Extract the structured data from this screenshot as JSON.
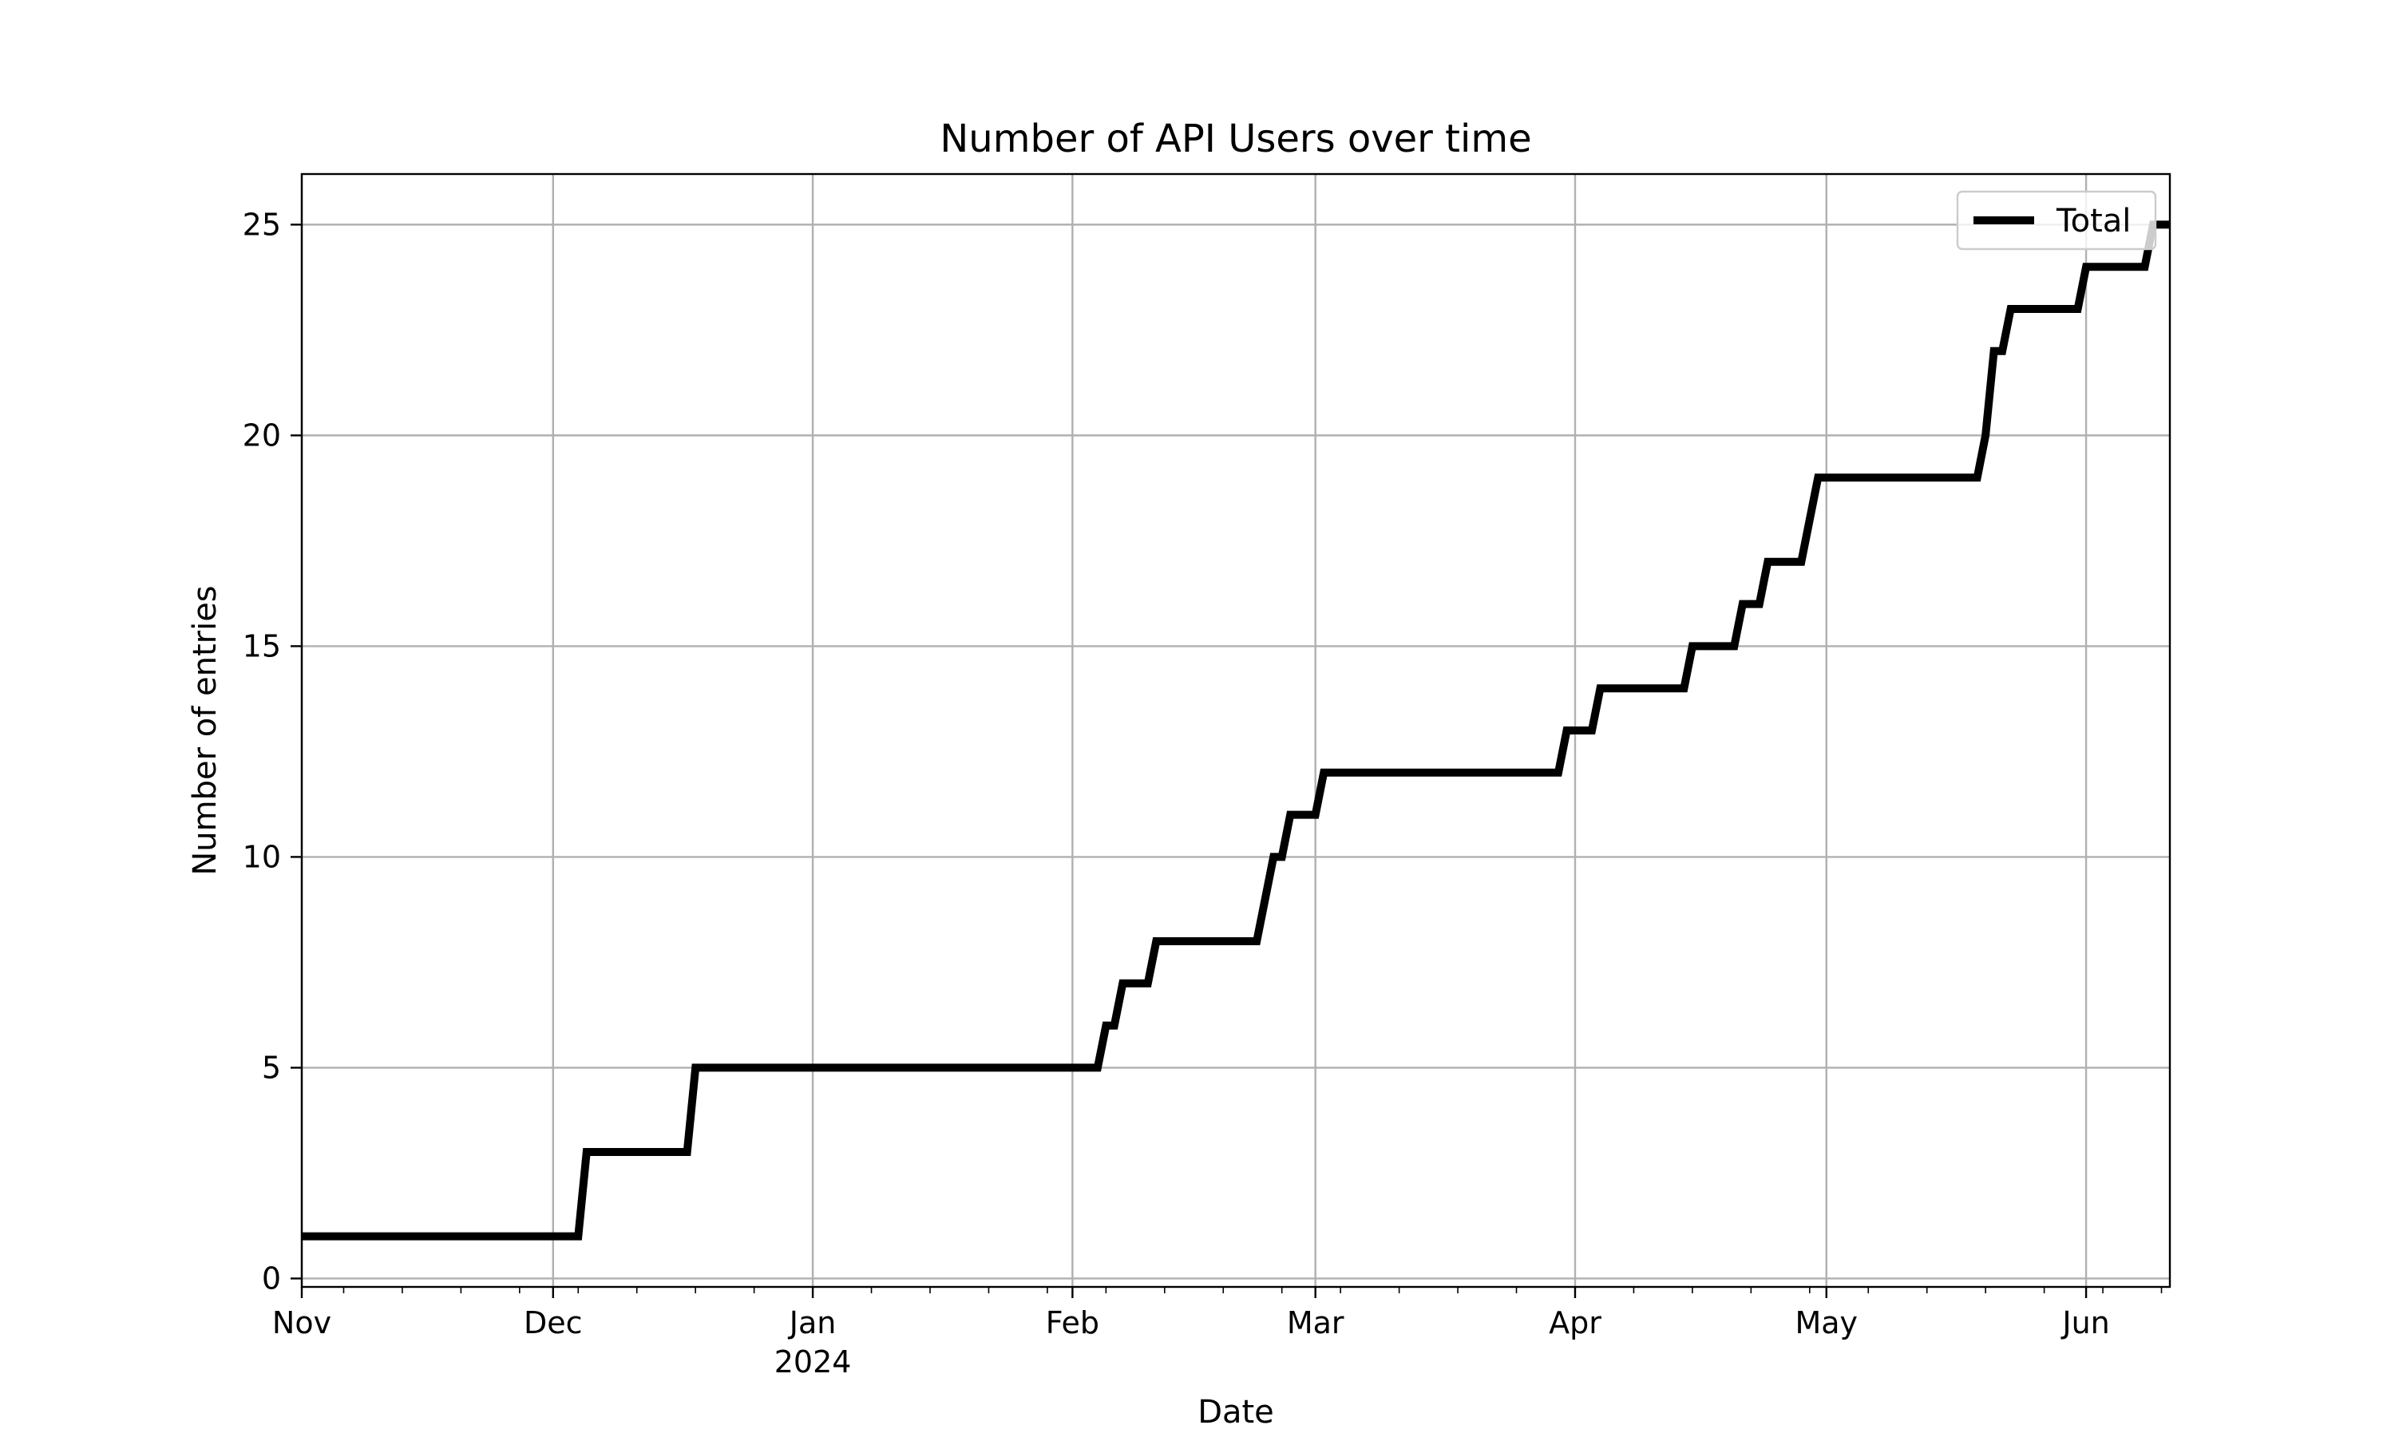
{
  "chart_data": {
    "type": "line",
    "title": "Number of API Users over time",
    "xlabel": "Date",
    "ylabel": "Number of entries",
    "xlim": [
      "2023-11-01",
      "2024-06-11"
    ],
    "ylim": [
      -0.2,
      26.2
    ],
    "grid": true,
    "legend_position": "top-right",
    "x_ticks": [
      {
        "date": "2023-11-01",
        "label": "Nov",
        "sublabel": ""
      },
      {
        "date": "2023-12-01",
        "label": "Dec",
        "sublabel": ""
      },
      {
        "date": "2024-01-01",
        "label": "Jan",
        "sublabel": "2024"
      },
      {
        "date": "2024-02-01",
        "label": "Feb",
        "sublabel": ""
      },
      {
        "date": "2024-03-01",
        "label": "Mar",
        "sublabel": ""
      },
      {
        "date": "2024-04-01",
        "label": "Apr",
        "sublabel": ""
      },
      {
        "date": "2024-05-01",
        "label": "May",
        "sublabel": ""
      },
      {
        "date": "2024-06-01",
        "label": "Jun",
        "sublabel": ""
      }
    ],
    "y_ticks": [
      0,
      5,
      10,
      15,
      20,
      25
    ],
    "series": [
      {
        "name": "Total",
        "color": "#000000",
        "points": [
          [
            "2023-11-01",
            1
          ],
          [
            "2023-12-04",
            1
          ],
          [
            "2023-12-05",
            3
          ],
          [
            "2023-12-17",
            3
          ],
          [
            "2023-12-18",
            5
          ],
          [
            "2024-02-04",
            5
          ],
          [
            "2024-02-05",
            6
          ],
          [
            "2024-02-06",
            6
          ],
          [
            "2024-02-07",
            7
          ],
          [
            "2024-02-10",
            7
          ],
          [
            "2024-02-11",
            8
          ],
          [
            "2024-02-23",
            8
          ],
          [
            "2024-02-25",
            10
          ],
          [
            "2024-02-26",
            10
          ],
          [
            "2024-02-27",
            11
          ],
          [
            "2024-03-01",
            11
          ],
          [
            "2024-03-02",
            12
          ],
          [
            "2024-03-30",
            12
          ],
          [
            "2024-03-31",
            13
          ],
          [
            "2024-04-03",
            13
          ],
          [
            "2024-04-04",
            14
          ],
          [
            "2024-04-14",
            14
          ],
          [
            "2024-04-15",
            15
          ],
          [
            "2024-04-20",
            15
          ],
          [
            "2024-04-21",
            16
          ],
          [
            "2024-04-23",
            16
          ],
          [
            "2024-04-24",
            17
          ],
          [
            "2024-04-28",
            17
          ],
          [
            "2024-04-30",
            19
          ],
          [
            "2024-05-19",
            19
          ],
          [
            "2024-05-20",
            20
          ],
          [
            "2024-05-21",
            22
          ],
          [
            "2024-05-22",
            22
          ],
          [
            "2024-05-23",
            23
          ],
          [
            "2024-05-31",
            23
          ],
          [
            "2024-06-01",
            24
          ],
          [
            "2024-06-08",
            24
          ],
          [
            "2024-06-09",
            25
          ],
          [
            "2024-06-11",
            25
          ]
        ]
      }
    ]
  }
}
